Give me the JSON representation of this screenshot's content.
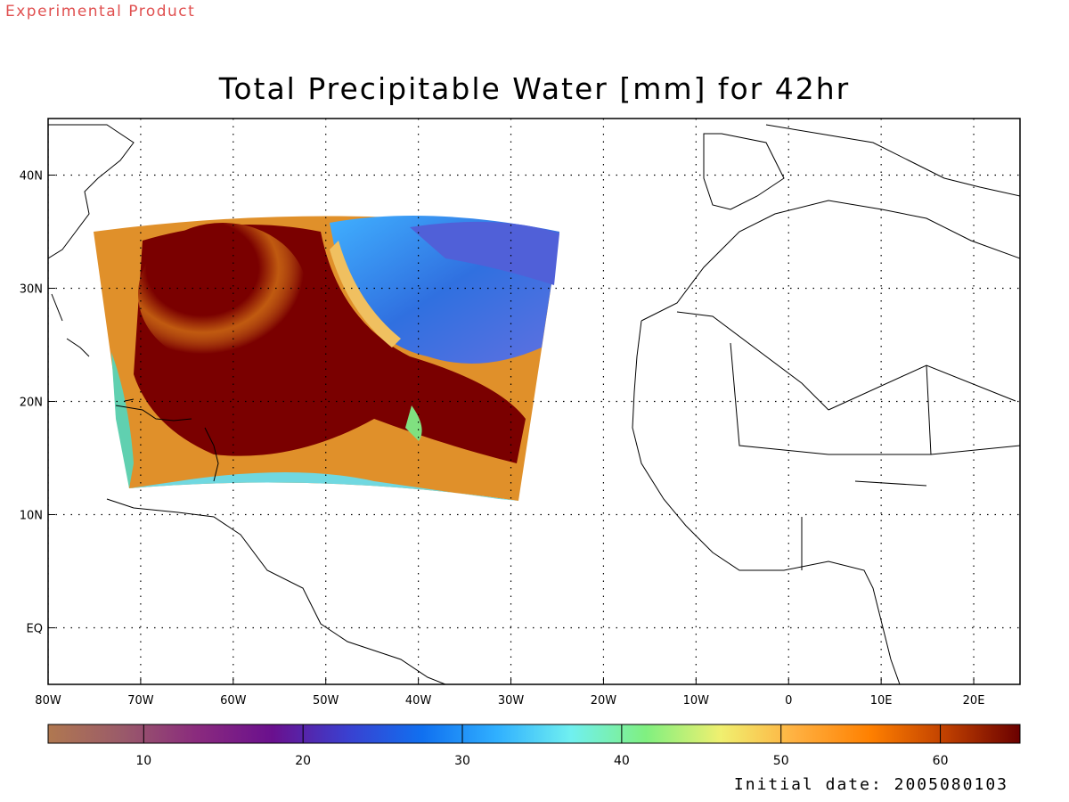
{
  "header": {
    "product_note": "Experimental Product",
    "title": "Total Precipitable Water [mm] for 42hr"
  },
  "footer": {
    "initial_date": "Initial date: 2005080103"
  },
  "map": {
    "lon_range": [
      -80,
      25
    ],
    "lat_range": [
      -5,
      45
    ],
    "grid": "dotted",
    "lon_ticks": [
      {
        "lon": -80,
        "label": "80W"
      },
      {
        "lon": -70,
        "label": "70W"
      },
      {
        "lon": -60,
        "label": "60W"
      },
      {
        "lon": -50,
        "label": "50W"
      },
      {
        "lon": -40,
        "label": "40W"
      },
      {
        "lon": -30,
        "label": "30W"
      },
      {
        "lon": -20,
        "label": "20W"
      },
      {
        "lon": -10,
        "label": "10W"
      },
      {
        "lon": 0,
        "label": "0"
      },
      {
        "lon": 10,
        "label": "10E"
      },
      {
        "lon": 20,
        "label": "20E"
      }
    ],
    "lat_ticks": [
      {
        "lat": 40,
        "label": "40N"
      },
      {
        "lat": 30,
        "label": "30N"
      },
      {
        "lat": 20,
        "label": "20N"
      },
      {
        "lat": 10,
        "label": "10N"
      },
      {
        "lat": 0,
        "label": "EQ"
      }
    ],
    "data_domain": {
      "lon_west": -75,
      "lon_east": -25,
      "lat_south": 12,
      "lat_north": 37
    }
  },
  "colorbar": {
    "min": 4,
    "max": 65,
    "ticks": [
      10,
      20,
      30,
      40,
      50,
      60
    ],
    "colors": [
      "#b07850",
      "#9a5a6a",
      "#8a2a7e",
      "#6a108e",
      "#3a40d0",
      "#1070f0",
      "#30b0ff",
      "#70f0f0",
      "#80f080",
      "#f0f070",
      "#ffb040",
      "#ff8000",
      "#c04000",
      "#6a0000"
    ]
  }
}
